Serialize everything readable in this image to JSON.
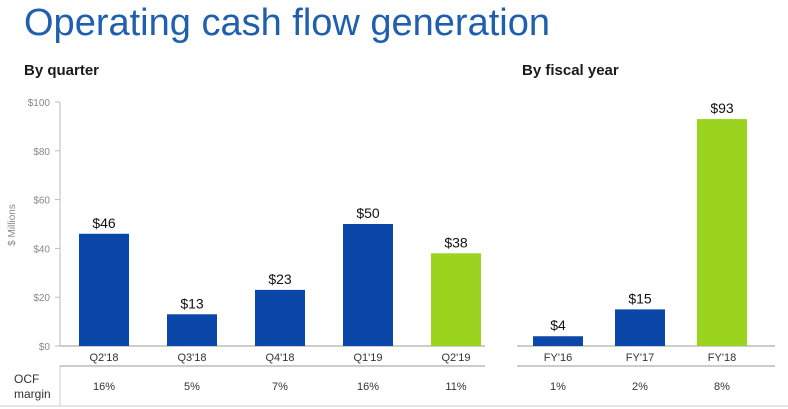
{
  "title": "Operating cash flow generation",
  "ylabel": "$ Millions",
  "ocf_label": [
    "OCF",
    "margin"
  ],
  "colors": {
    "blue": "#0a47a8",
    "green": "#9ad41f",
    "title": "#1f5fae"
  },
  "chart_data": [
    {
      "type": "bar",
      "subtitle": "By quarter",
      "categories": [
        "Q2'18",
        "Q3'18",
        "Q4'18",
        "Q1'19",
        "Q2'19"
      ],
      "values": [
        46,
        13,
        23,
        50,
        38
      ],
      "labels": [
        "$46",
        "$13",
        "$23",
        "$50",
        "$38"
      ],
      "bar_colors": [
        "blue",
        "blue",
        "blue",
        "blue",
        "green"
      ],
      "margins": [
        "16%",
        "5%",
        "7%",
        "16%",
        "11%"
      ],
      "ylim": [
        0,
        100
      ],
      "yticks": [
        "$0",
        "$20",
        "$40",
        "$60",
        "$80",
        "$100"
      ]
    },
    {
      "type": "bar",
      "subtitle": "By fiscal year",
      "categories": [
        "FY'16",
        "FY'17",
        "FY'18"
      ],
      "values": [
        4,
        15,
        93
      ],
      "labels": [
        "$4",
        "$15",
        "$93"
      ],
      "bar_colors": [
        "blue",
        "blue",
        "green"
      ],
      "margins": [
        "1%",
        "2%",
        "8%"
      ],
      "ylim": [
        0,
        100
      ]
    }
  ]
}
